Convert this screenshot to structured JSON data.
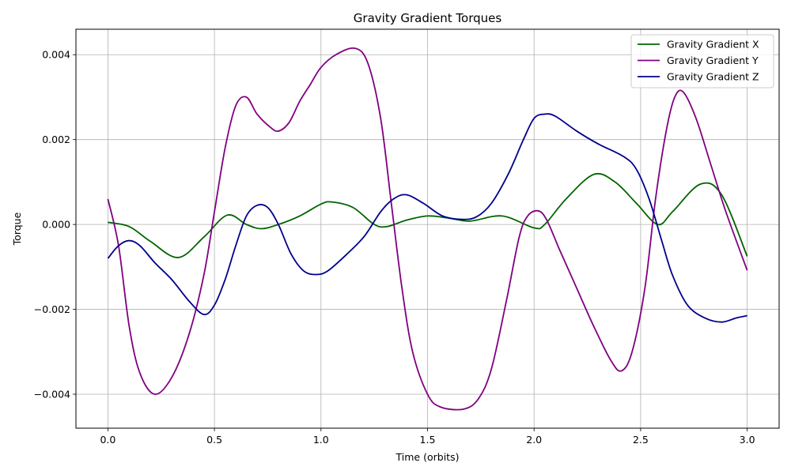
{
  "chart_data": {
    "type": "line",
    "title": "Gravity Gradient Torques",
    "xlabel": "Time (orbits)",
    "ylabel": "Torque",
    "xlim": [
      -0.15,
      3.15
    ],
    "ylim": [
      -0.0048,
      0.0046
    ],
    "xticks": [
      0.0,
      0.5,
      1.0,
      1.5,
      2.0,
      2.5,
      3.0
    ],
    "xtick_labels": [
      "0.0",
      "0.5",
      "1.0",
      "1.5",
      "2.0",
      "2.5",
      "3.0"
    ],
    "yticks": [
      -0.004,
      -0.002,
      0.0,
      0.002,
      0.004
    ],
    "ytick_labels": [
      "−0.004",
      "−0.002",
      "0.000",
      "0.002",
      "0.004"
    ],
    "grid": true,
    "legend_position": "top-right",
    "series": [
      {
        "name": "Gravity Gradient X",
        "color": "#006400",
        "points": [
          [
            0.0,
            5e-05
          ],
          [
            0.1,
            -5e-05
          ],
          [
            0.2,
            -0.0004
          ],
          [
            0.33,
            -0.00078
          ],
          [
            0.45,
            -0.0003
          ],
          [
            0.56,
            0.00022
          ],
          [
            0.65,
            0.0
          ],
          [
            0.72,
            -0.0001
          ],
          [
            0.8,
            0.0
          ],
          [
            0.9,
            0.0002
          ],
          [
            1.0,
            0.00048
          ],
          [
            1.05,
            0.00053
          ],
          [
            1.15,
            0.0004
          ],
          [
            1.25,
            0.0
          ],
          [
            1.31,
            -5e-05
          ],
          [
            1.4,
            0.0001
          ],
          [
            1.5,
            0.0002
          ],
          [
            1.6,
            0.00015
          ],
          [
            1.7,
            8e-05
          ],
          [
            1.85,
            0.0002
          ],
          [
            2.0,
            -8e-05
          ],
          [
            2.05,
            0.0
          ],
          [
            2.15,
            0.0006
          ],
          [
            2.28,
            0.00118
          ],
          [
            2.38,
            0.001
          ],
          [
            2.48,
            0.0005
          ],
          [
            2.58,
            0.0
          ],
          [
            2.65,
            0.0003
          ],
          [
            2.78,
            0.00095
          ],
          [
            2.88,
            0.0007
          ],
          [
            3.0,
            -0.00075
          ]
        ]
      },
      {
        "name": "Gravity Gradient Y",
        "color": "#800080",
        "points": [
          [
            0.0,
            0.0006
          ],
          [
            0.05,
            -0.0005
          ],
          [
            0.1,
            -0.0024
          ],
          [
            0.15,
            -0.0035
          ],
          [
            0.22,
            -0.004
          ],
          [
            0.3,
            -0.0036
          ],
          [
            0.38,
            -0.0026
          ],
          [
            0.45,
            -0.0012
          ],
          [
            0.5,
            0.0003
          ],
          [
            0.55,
            0.0018
          ],
          [
            0.6,
            0.0028
          ],
          [
            0.65,
            0.003
          ],
          [
            0.7,
            0.0026
          ],
          [
            0.76,
            0.0023
          ],
          [
            0.8,
            0.0022
          ],
          [
            0.85,
            0.0024
          ],
          [
            0.9,
            0.0029
          ],
          [
            0.95,
            0.0033
          ],
          [
            1.0,
            0.0037
          ],
          [
            1.07,
            0.004
          ],
          [
            1.16,
            0.00415
          ],
          [
            1.22,
            0.0038
          ],
          [
            1.28,
            0.0025
          ],
          [
            1.33,
            0.0005
          ],
          [
            1.38,
            -0.0015
          ],
          [
            1.43,
            -0.003
          ],
          [
            1.5,
            -0.004
          ],
          [
            1.56,
            -0.0043
          ],
          [
            1.67,
            -0.00435
          ],
          [
            1.74,
            -0.0041
          ],
          [
            1.8,
            -0.0034
          ],
          [
            1.87,
            -0.0018
          ],
          [
            1.93,
            -0.0003
          ],
          [
            1.97,
            0.0002
          ],
          [
            2.02,
            0.00032
          ],
          [
            2.06,
            0.0001
          ],
          [
            2.12,
            -0.0006
          ],
          [
            2.2,
            -0.0015
          ],
          [
            2.28,
            -0.0024
          ],
          [
            2.36,
            -0.0032
          ],
          [
            2.41,
            -0.00345
          ],
          [
            2.46,
            -0.003
          ],
          [
            2.52,
            -0.0015
          ],
          [
            2.57,
            0.0006
          ],
          [
            2.62,
            0.0022
          ],
          [
            2.66,
            0.003
          ],
          [
            2.7,
            0.00312
          ],
          [
            2.76,
            0.0025
          ],
          [
            2.83,
            0.0014
          ],
          [
            2.9,
            0.0003
          ],
          [
            3.0,
            -0.00108
          ]
        ]
      },
      {
        "name": "Gravity Gradient Z",
        "color": "#00008b",
        "points": [
          [
            0.0,
            -0.0008
          ],
          [
            0.05,
            -0.0005
          ],
          [
            0.1,
            -0.00038
          ],
          [
            0.15,
            -0.0005
          ],
          [
            0.22,
            -0.0009
          ],
          [
            0.3,
            -0.0013
          ],
          [
            0.38,
            -0.0018
          ],
          [
            0.45,
            -0.00212
          ],
          [
            0.5,
            -0.0019
          ],
          [
            0.55,
            -0.0013
          ],
          [
            0.6,
            -0.0005
          ],
          [
            0.65,
            0.0002
          ],
          [
            0.7,
            0.00045
          ],
          [
            0.75,
            0.0004
          ],
          [
            0.8,
            0.0
          ],
          [
            0.86,
            -0.0007
          ],
          [
            0.92,
            -0.0011
          ],
          [
            0.98,
            -0.00118
          ],
          [
            1.03,
            -0.0011
          ],
          [
            1.1,
            -0.0008
          ],
          [
            1.2,
            -0.0003
          ],
          [
            1.28,
            0.0003
          ],
          [
            1.34,
            0.0006
          ],
          [
            1.4,
            0.0007
          ],
          [
            1.48,
            0.0005
          ],
          [
            1.57,
            0.0002
          ],
          [
            1.66,
            0.00012
          ],
          [
            1.73,
            0.00018
          ],
          [
            1.8,
            0.0005
          ],
          [
            1.88,
            0.0012
          ],
          [
            1.95,
            0.002
          ],
          [
            2.0,
            0.0025
          ],
          [
            2.05,
            0.0026
          ],
          [
            2.1,
            0.00255
          ],
          [
            2.2,
            0.0022
          ],
          [
            2.3,
            0.0019
          ],
          [
            2.42,
            0.0016
          ],
          [
            2.48,
            0.0013
          ],
          [
            2.54,
            0.0006
          ],
          [
            2.6,
            -0.0004
          ],
          [
            2.65,
            -0.0012
          ],
          [
            2.72,
            -0.0019
          ],
          [
            2.8,
            -0.0022
          ],
          [
            2.88,
            -0.0023
          ],
          [
            2.95,
            -0.0022
          ],
          [
            3.0,
            -0.00215
          ]
        ]
      }
    ]
  }
}
